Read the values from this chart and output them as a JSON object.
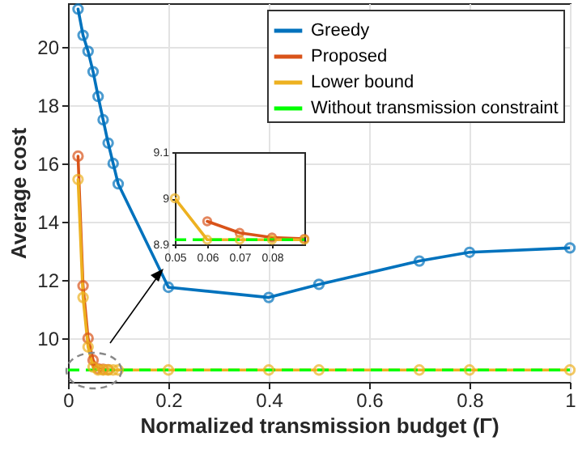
{
  "chart_data": [
    {
      "type": "line",
      "xlabel": "Normalized transmission budget (Γ)",
      "ylabel": "Average cost",
      "x": [
        0.02,
        0.03,
        0.04,
        0.05,
        0.06,
        0.07,
        0.08,
        0.09,
        0.1,
        0.2,
        0.4,
        0.5,
        0.7,
        0.8,
        1
      ],
      "xlim": [
        0,
        1
      ],
      "xticks": [
        0,
        0.2,
        0.4,
        0.6,
        0.8,
        1
      ],
      "ylim": [
        8.5,
        21.5
      ],
      "yticks": [
        10,
        12,
        14,
        16,
        18,
        20
      ],
      "grid": true,
      "legend": "top right",
      "series": [
        {
          "name": "Greedy",
          "color": "#0072bd",
          "marker": "circle",
          "values": [
            21.3,
            20.4,
            19.85,
            19.15,
            18.3,
            17.5,
            16.7,
            16.0,
            15.3,
            11.75,
            11.4,
            11.85,
            12.65,
            12.95,
            13.1
          ]
        },
        {
          "name": "Proposed",
          "color": "#d95319",
          "marker": "circle",
          "values": [
            16.25,
            11.8,
            10.0,
            9.25,
            8.95,
            8.93,
            8.92,
            null,
            null,
            null,
            null,
            null,
            null,
            null,
            null
          ]
        },
        {
          "name": "Lower bound",
          "color": "#edb120",
          "marker": "circle",
          "values": [
            15.45,
            11.4,
            9.7,
            9.01,
            8.91,
            8.91,
            8.91,
            8.91,
            8.91,
            8.91,
            8.91,
            8.91,
            8.91,
            8.91,
            8.91
          ]
        },
        {
          "name": "Without transmission constraint",
          "color": "#00ff00",
          "marker": "none",
          "line_style": "dashed",
          "x": [
            0,
            1
          ],
          "values": [
            8.91,
            8.91
          ]
        }
      ]
    },
    {
      "type": "line",
      "x": [
        0.05,
        0.06,
        0.07,
        0.08,
        0.09
      ],
      "xlim": [
        0.05,
        0.09
      ],
      "xticks": [
        0.05,
        0.06,
        0.07,
        0.08
      ],
      "ylim": [
        8.9,
        9.1
      ],
      "yticks": [
        8.9,
        9,
        9.1
      ],
      "grid": false,
      "series": [
        {
          "color": "#d95319",
          "marker": "circle",
          "values": [
            null,
            8.95,
            8.925,
            8.915,
            8.912
          ]
        },
        {
          "color": "#edb120",
          "marker": "circle",
          "values": [
            9.0,
            8.91,
            8.91,
            8.91,
            8.91
          ]
        },
        {
          "color": "#00ff00",
          "marker": "none",
          "line_style": "dashed",
          "x": [
            0.05,
            0.09
          ],
          "values": [
            8.91,
            8.91
          ]
        }
      ]
    }
  ]
}
